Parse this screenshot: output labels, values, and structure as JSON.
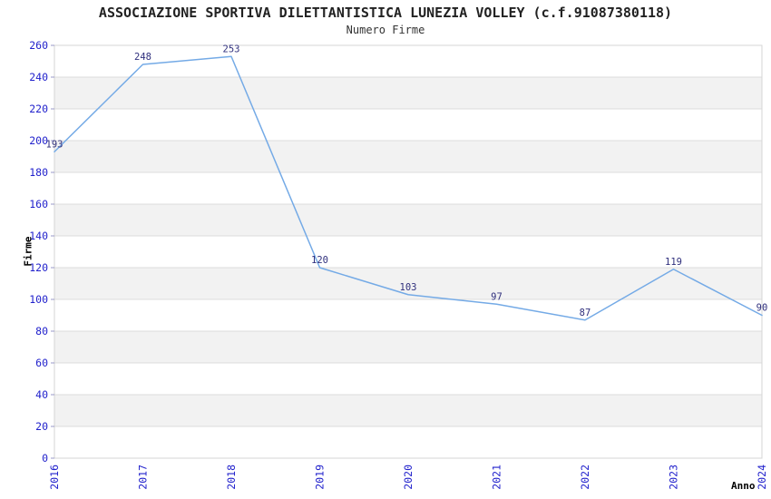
{
  "chart": {
    "title": "ASSOCIAZIONE SPORTIVA DILETTANTISTICA LUNEZIA VOLLEY (c.f.91087380118)",
    "subtitle": "Numero Firme",
    "ylabel": "Firme",
    "xlabel": "Anno"
  },
  "chart_data": {
    "type": "line",
    "title": "ASSOCIAZIONE SPORTIVA DILETTANTISTICA LUNEZIA VOLLEY (c.f.91087380118)",
    "subtitle": "Numero Firme",
    "xlabel": "Anno",
    "ylabel": "Firme",
    "categories": [
      "2016",
      "2017",
      "2018",
      "2019",
      "2020",
      "2021",
      "2022",
      "2023",
      "2024"
    ],
    "values": [
      193,
      248,
      253,
      120,
      103,
      97,
      87,
      119,
      90
    ],
    "ylim": [
      0,
      260
    ],
    "ytick_step": 20,
    "grid": "horizontal",
    "background_bands": "alternating",
    "legend": "none",
    "point_labels_shown": true,
    "colors": {
      "line": "#74aae6",
      "tick_labels": "#2222cc",
      "value_labels": "#30307d",
      "band_fill": "#f2f2f2",
      "grid_line": "#dcdcdc",
      "plot_border": "#d4d4d4",
      "axis_tick_mark": "#9898c8",
      "title_text": "#222222",
      "axis_title_text": "#000000",
      "background": "#ffffff"
    }
  }
}
